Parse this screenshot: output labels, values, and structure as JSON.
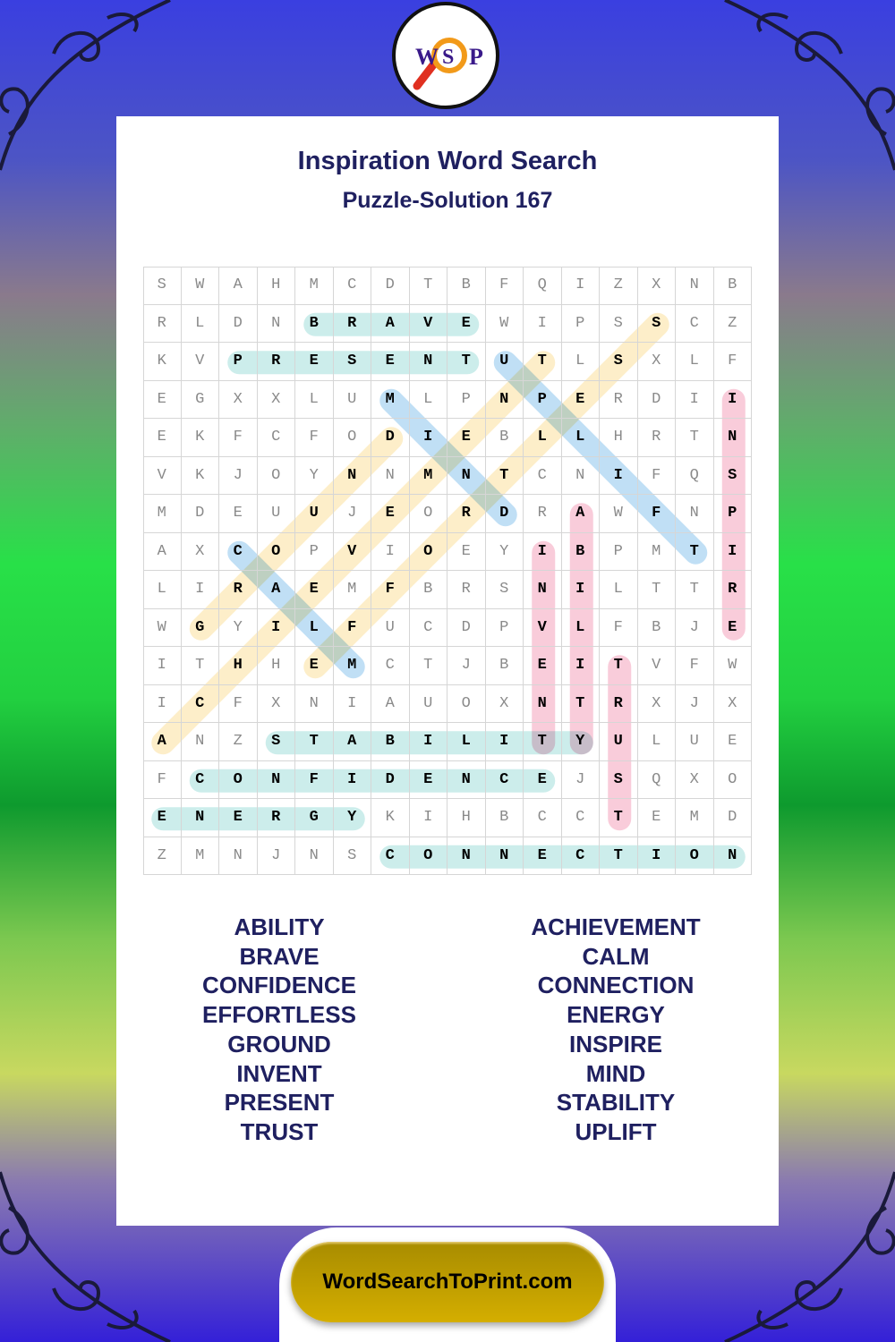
{
  "logo": {
    "letters": [
      "W",
      "S",
      "P"
    ],
    "icon": "magnifying-glass-icon"
  },
  "title": "Inspiration Word Search",
  "subtitle": "Puzzle-Solution 167",
  "grid": {
    "rows": [
      "SWAHMCDTBFQIZXNB",
      "RLDNBRAVEWIPSSCZ",
      "KVPRESENTUTLSXLF",
      "EGXXLUMLPNPERDII",
      "EKFCFODIEBLLHRTN",
      "VKJOYNNMNTCNIFQS",
      "MDEUUJEORDRAWFNP",
      "AXCOPVIOEYIBPMTI",
      "LIRAEMFBRSNILTTR",
      "WGYILFUCDPVLFBJE",
      "ITHHEMCTJBEITVFW",
      "ICFXNIAUOXNTRXJX",
      "ANZSTABILITYULUE",
      "FCONFIDENCEJSQXO",
      "ENERGYKIHBCCTEMD",
      "ZMNJNSCONNECTION"
    ],
    "solutions": [
      {
        "word": "BRAVE",
        "start": [
          1,
          4
        ],
        "end": [
          1,
          8
        ],
        "color": "#c3eae8"
      },
      {
        "word": "PRESENT",
        "start": [
          2,
          2
        ],
        "end": [
          2,
          8
        ],
        "color": "#c3eae8"
      },
      {
        "word": "STABILITY",
        "start": [
          12,
          3
        ],
        "end": [
          12,
          11
        ],
        "color": "#c3eae8"
      },
      {
        "word": "CONFIDENCE",
        "start": [
          13,
          1
        ],
        "end": [
          13,
          10
        ],
        "color": "#c3eae8"
      },
      {
        "word": "ENERGY",
        "start": [
          14,
          0
        ],
        "end": [
          14,
          5
        ],
        "color": "#c3eae8"
      },
      {
        "word": "CONNECTION",
        "start": [
          15,
          6
        ],
        "end": [
          15,
          15
        ],
        "color": "#c3eae8"
      },
      {
        "word": "INSPIRE",
        "start": [
          3,
          15
        ],
        "end": [
          9,
          15
        ],
        "color": "#f8c3d3"
      },
      {
        "word": "INVENT",
        "start": [
          7,
          10
        ],
        "end": [
          12,
          10
        ],
        "color": "#f8c3d3"
      },
      {
        "word": "ABILITY",
        "start": [
          6,
          11
        ],
        "end": [
          12,
          11
        ],
        "color": "#f8c3d3"
      },
      {
        "word": "TRUST",
        "start": [
          10,
          12
        ],
        "end": [
          14,
          12
        ],
        "color": "#f8c3d3"
      },
      {
        "word": "MIND",
        "start": [
          3,
          6
        ],
        "end": [
          6,
          9
        ],
        "color": "#b5d9f3"
      },
      {
        "word": "UPLIFT",
        "start": [
          2,
          9
        ],
        "end": [
          7,
          14
        ],
        "color": "#b5d9f3"
      },
      {
        "word": "CALM",
        "start": [
          7,
          2
        ],
        "end": [
          10,
          5
        ],
        "color": "#b5d9f3"
      },
      {
        "word": "ACHIEVEMENT",
        "start": [
          12,
          0
        ],
        "end": [
          2,
          10
        ],
        "color": "#fdebc0"
      },
      {
        "word": "GROUND",
        "start": [
          9,
          1
        ],
        "end": [
          4,
          6
        ],
        "color": "#fdebc0"
      },
      {
        "word": "EFFORTLESS",
        "start": [
          10,
          4
        ],
        "end": [
          1,
          13
        ],
        "color": "#fdebc0"
      }
    ]
  },
  "word_list": {
    "left": [
      "ABILITY",
      "BRAVE",
      "CONFIDENCE",
      "EFFORTLESS",
      "GROUND",
      "INVENT",
      "PRESENT",
      "TRUST"
    ],
    "right": [
      "ACHIEVEMENT",
      "CALM",
      "CONNECTION",
      "ENERGY",
      "INSPIRE",
      "MIND",
      "STABILITY",
      "UPLIFT"
    ]
  },
  "footer": {
    "site": "WordSearchToPrint.com"
  },
  "colors": {
    "title": "#1f2060",
    "footer_button": "#c4a200"
  }
}
